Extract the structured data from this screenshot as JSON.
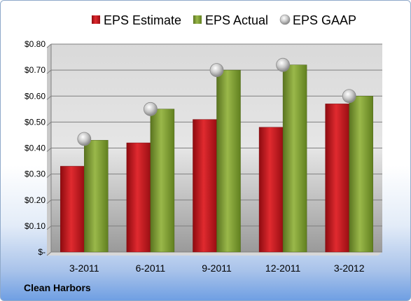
{
  "company": "Clean Harbors",
  "colors": {
    "estimate": "#c8161d",
    "actual": "#7a9a2e",
    "gaap": "#b8b8b8"
  },
  "chart_data": {
    "type": "bar",
    "categories": [
      "3-2011",
      "6-2011",
      "9-2011",
      "12-2011",
      "3-2012"
    ],
    "series": [
      {
        "name": "EPS Estimate",
        "values": [
          0.33,
          0.42,
          0.51,
          0.48,
          0.57
        ]
      },
      {
        "name": "EPS Actual",
        "values": [
          0.43,
          0.55,
          0.7,
          0.72,
          0.6
        ]
      },
      {
        "name": "EPS GAAP",
        "type": "scatter",
        "values": [
          0.435,
          0.55,
          0.7,
          0.72,
          0.6
        ]
      }
    ],
    "ylim": [
      0,
      0.8
    ],
    "yticks": [
      0,
      0.1,
      0.2,
      0.3,
      0.4,
      0.5,
      0.6,
      0.7,
      0.8
    ],
    "ytick_labels": [
      "$-",
      "$0.10",
      "$0.20",
      "$0.30",
      "$0.40",
      "$0.50",
      "$0.60",
      "$0.70",
      "$0.80"
    ],
    "grid": true,
    "legend_position": "top"
  }
}
